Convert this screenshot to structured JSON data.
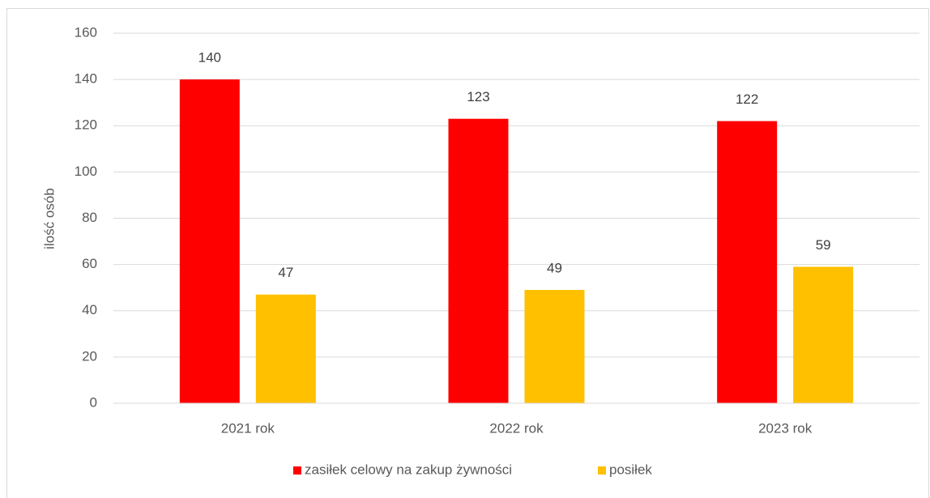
{
  "chart_data": {
    "type": "bar",
    "y_label": "ilość osób",
    "categories": [
      "2021 rok",
      "2022 rok",
      "2023 rok"
    ],
    "series": [
      {
        "name": "zasiłek celowy na zakup żywności",
        "color": "#ff0000",
        "values": [
          140,
          123,
          122
        ]
      },
      {
        "name": "posiłek",
        "color": "#ffc000",
        "values": [
          47,
          49,
          59
        ]
      }
    ],
    "ylim": [
      0,
      160
    ],
    "yticks": [
      0,
      20,
      40,
      60,
      80,
      100,
      120,
      140,
      160
    ],
    "grid": true,
    "legend": "bottom"
  }
}
